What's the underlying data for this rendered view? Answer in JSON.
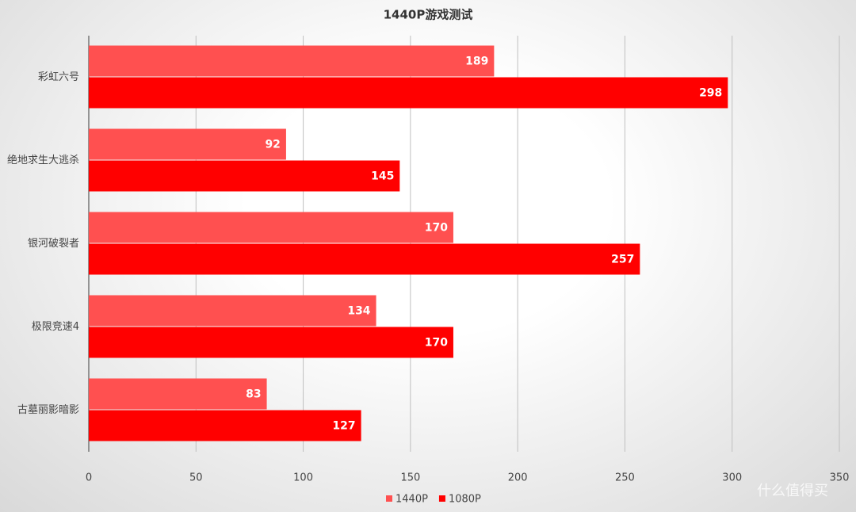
{
  "chart_data": {
    "type": "hbar",
    "title": "1440P游戏测试",
    "categories": [
      "彩虹六号",
      "绝地求生大逃杀",
      "银河破裂者",
      "极限竞速4",
      "古墓丽影暗影"
    ],
    "series": [
      {
        "name": "1440P",
        "color": "#ff5050",
        "values": [
          189,
          92,
          170,
          134,
          83
        ]
      },
      {
        "name": "1080P",
        "color": "#ff0000",
        "values": [
          298,
          145,
          257,
          170,
          127
        ]
      }
    ],
    "xlim": [
      0,
      350
    ],
    "xticks": [
      0,
      50,
      100,
      150,
      200,
      250,
      300,
      350
    ],
    "grid": true,
    "legend": "bottom"
  },
  "watermark": "什么值得买"
}
